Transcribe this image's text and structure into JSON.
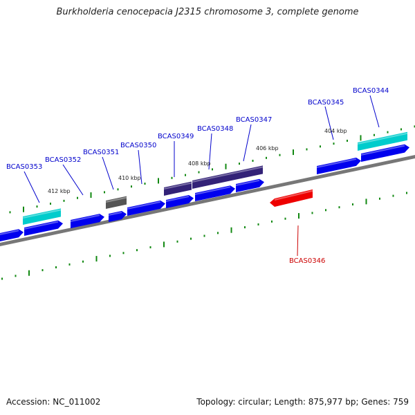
{
  "title": "Burkholderia cenocepacia J2315 chromosome 3, complete genome",
  "footer": {
    "accession": "Accession: NC_011002",
    "summary": "Topology: circular; Length: 875,977 bp; Genes: 759"
  },
  "colors": {
    "cds": "#0000ee",
    "cds_light": "#3333ff",
    "rna": "#00cccc",
    "pseudo": "#555555",
    "other": "#332277",
    "highlight": "#ee0000",
    "backbone": "#777777",
    "tick": "#118811",
    "label_forward": "#0000cc",
    "label_reverse": "#cc0000"
  },
  "scale_labels": [
    "404 kbp",
    "406 kbp",
    "408 kbp",
    "410 kbp",
    "412 kbp"
  ],
  "gene_labels": [
    {
      "text": "BCAS0344",
      "strand": "forward"
    },
    {
      "text": "BCAS0345",
      "strand": "forward"
    },
    {
      "text": "BCAS0346",
      "strand": "reverse"
    },
    {
      "text": "BCAS0347",
      "strand": "forward"
    },
    {
      "text": "BCAS0348",
      "strand": "forward"
    },
    {
      "text": "BCAS0349",
      "strand": "forward"
    },
    {
      "text": "BCAS0350",
      "strand": "forward"
    },
    {
      "text": "BCAS0351",
      "strand": "forward"
    },
    {
      "text": "BCAS0352",
      "strand": "forward"
    },
    {
      "text": "BCAS0353",
      "strand": "forward"
    }
  ]
}
